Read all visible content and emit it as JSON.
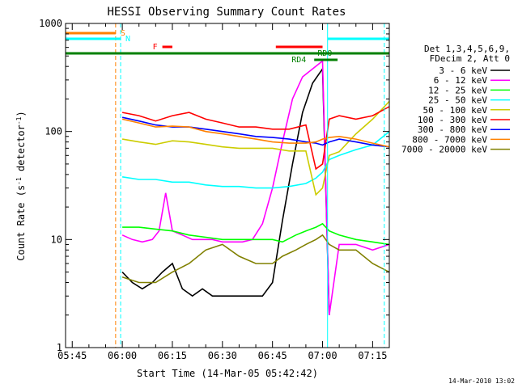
{
  "chart_data": {
    "type": "line",
    "title": "HESSI Observing Summary Count Rates",
    "xlabel": "Start Time (14-Mar-05 05:42:42)",
    "ylabel_pre": "Count Rate (s",
    "ylabel_sup1": "-1",
    "ylabel_mid": " detector",
    "ylabel_sup2": "-1",
    "ylabel_post": ")",
    "yscale": "log",
    "ylim": [
      1,
      1000
    ],
    "xlim_minutes": [
      -17,
      80
    ],
    "x_ticks": [
      "05:45",
      "06:00",
      "06:15",
      "06:30",
      "06:45",
      "07:00",
      "07:15"
    ],
    "x_tick_minutes": [
      -15,
      0,
      15,
      30,
      45,
      60,
      75
    ],
    "y_ticks": [
      {
        "value": 1,
        "label": "1"
      },
      {
        "value": 10,
        "label": "10"
      },
      {
        "value": 100,
        "label": "100"
      },
      {
        "value": 1000,
        "label": "1000"
      }
    ],
    "legend": {
      "placement": "right",
      "header1": "Det 1,3,4,5,6,9,",
      "header2": "FDecim 2, Att 0"
    },
    "series": [
      {
        "name": "3 - 6 keV",
        "color": "#000000",
        "x": [
          0,
          3,
          6,
          9,
          12,
          15,
          18,
          21,
          24,
          27,
          30,
          33,
          36,
          39,
          42,
          45,
          48,
          51,
          54,
          57,
          60,
          62
        ],
        "y": [
          5,
          4,
          3.5,
          4,
          5,
          6,
          3.5,
          3,
          3.5,
          3,
          3,
          3,
          3,
          3,
          3,
          4,
          15,
          50,
          150,
          280,
          380,
          2
        ]
      },
      {
        "name": "6 - 12 keV",
        "color": "#ff00ff",
        "x": [
          0,
          3,
          6,
          9,
          11,
          13,
          15,
          18,
          21,
          24,
          27,
          30,
          33,
          36,
          39,
          42,
          45,
          48,
          51,
          54,
          57,
          60,
          62,
          65,
          70,
          75,
          80
        ],
        "y": [
          11,
          10,
          9.5,
          10,
          12,
          27,
          12,
          11,
          10,
          10,
          10,
          9.5,
          9.5,
          9.5,
          10,
          14,
          30,
          80,
          200,
          320,
          380,
          450,
          2,
          9,
          9,
          8,
          9
        ]
      },
      {
        "name": "12 - 25 keV",
        "color": "#00ff00",
        "x": [
          0,
          5,
          10,
          15,
          20,
          25,
          30,
          35,
          40,
          45,
          48,
          52,
          55,
          58,
          60,
          62,
          65,
          70,
          75,
          80
        ],
        "y": [
          13,
          13,
          12.5,
          12,
          11,
          10.5,
          10,
          10,
          10,
          10,
          9.5,
          11,
          12,
          13,
          14,
          12,
          11,
          10,
          9.5,
          9
        ]
      },
      {
        "name": "25 - 50 keV",
        "color": "#00ffff",
        "x": [
          0,
          5,
          10,
          15,
          20,
          25,
          30,
          35,
          40,
          45,
          50,
          55,
          58,
          60,
          62,
          65,
          70,
          75,
          80
        ],
        "y": [
          38,
          36,
          36,
          34,
          34,
          32,
          31,
          31,
          30,
          30,
          31,
          33,
          37,
          42,
          55,
          60,
          68,
          75,
          100
        ]
      },
      {
        "name": "50 - 100 keV",
        "color": "#cccc00",
        "x": [
          0,
          5,
          10,
          15,
          20,
          25,
          30,
          35,
          40,
          45,
          50,
          55,
          58,
          60,
          62,
          65,
          70,
          75,
          80
        ],
        "y": [
          85,
          80,
          76,
          82,
          80,
          76,
          72,
          70,
          70,
          70,
          66,
          66,
          26,
          30,
          60,
          65,
          95,
          130,
          190
        ]
      },
      {
        "name": "100 - 300 keV",
        "color": "#ff0000",
        "x": [
          0,
          5,
          10,
          15,
          20,
          25,
          30,
          35,
          40,
          45,
          50,
          55,
          58,
          60,
          62,
          65,
          70,
          75,
          80
        ],
        "y": [
          150,
          140,
          125,
          140,
          150,
          130,
          120,
          110,
          110,
          105,
          105,
          115,
          45,
          50,
          130,
          140,
          130,
          140,
          170
        ]
      },
      {
        "name": "300 - 800 keV",
        "color": "#0000ff",
        "x": [
          0,
          5,
          10,
          15,
          20,
          25,
          30,
          35,
          40,
          45,
          50,
          55,
          58,
          60,
          62,
          65,
          70,
          75,
          80
        ],
        "y": [
          135,
          125,
          115,
          110,
          110,
          105,
          100,
          95,
          90,
          88,
          85,
          80,
          78,
          75,
          80,
          85,
          80,
          75,
          72
        ]
      },
      {
        "name": "800 - 7000 keV",
        "color": "#ff8000",
        "x": [
          0,
          5,
          10,
          15,
          20,
          25,
          30,
          35,
          40,
          45,
          50,
          55,
          58,
          60,
          62,
          65,
          70,
          75,
          80
        ],
        "y": [
          130,
          120,
          110,
          112,
          110,
          100,
          95,
          90,
          85,
          80,
          78,
          78,
          80,
          85,
          88,
          90,
          85,
          78,
          72
        ]
      },
      {
        "name": "7000 - 20000 keV",
        "color": "#808000",
        "x": [
          0,
          5,
          10,
          15,
          20,
          25,
          30,
          35,
          40,
          45,
          48,
          52,
          55,
          58,
          60,
          62,
          65,
          70,
          75,
          80
        ],
        "y": [
          4.5,
          4,
          4,
          5,
          6,
          8,
          9,
          7,
          6,
          6,
          7,
          8,
          9,
          10,
          11,
          9,
          8,
          8,
          6,
          5
        ]
      }
    ],
    "flags": [
      {
        "label": "S",
        "color": "#ff8000"
      },
      {
        "label": "N",
        "color": "#00ffff"
      },
      {
        "label": "F",
        "color": "#ff0000"
      },
      {
        "label": "RD0",
        "color": "#008000"
      },
      {
        "label": "RD4",
        "color": "#008000"
      }
    ],
    "vlines": [
      {
        "color": "#ff8000",
        "dashed": true
      },
      {
        "color": "#00ffff",
        "dashed": true
      },
      {
        "color": "#00ffff",
        "dashed": false
      },
      {
        "color": "#00ffff",
        "dashed": true
      }
    ],
    "timestamp": "14-Mar-2010 13:02"
  }
}
